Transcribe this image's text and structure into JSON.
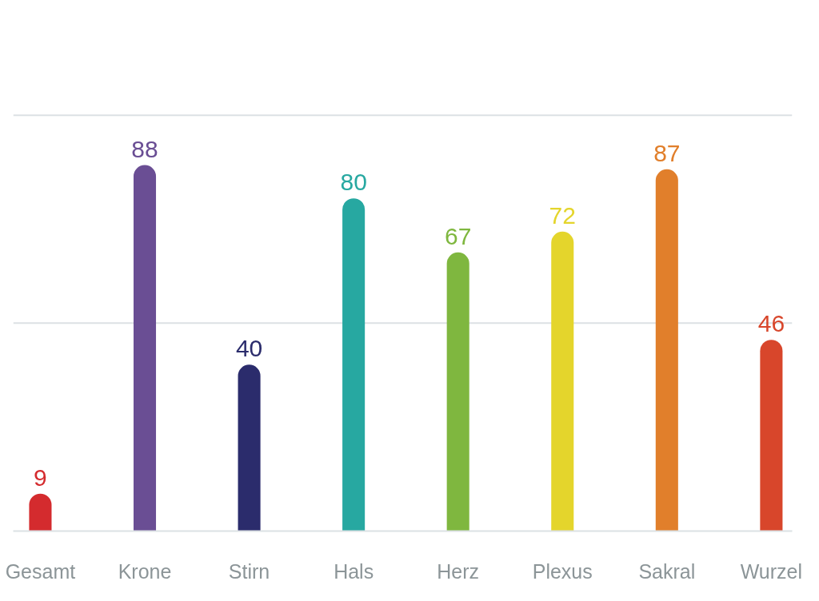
{
  "chart_data": {
    "type": "bar",
    "categories": [
      "Gesamt",
      "Krone",
      "Stirn",
      "Hals",
      "Herz",
      "Plexus",
      "Sakral",
      "Wurzel"
    ],
    "values": [
      9,
      88,
      40,
      80,
      67,
      72,
      87,
      46
    ],
    "colors": [
      "#d42b2e",
      "#6a4e94",
      "#2b2c6c",
      "#27a8a1",
      "#7fb73f",
      "#e4d52c",
      "#e17f2b",
      "#d8462b"
    ],
    "ref_lines": [
      {
        "axis": "y",
        "value": 50,
        "color": "#dce1e4"
      },
      {
        "axis": "y",
        "value": 100,
        "color": "#dce1e4"
      }
    ],
    "tick_labels": "x",
    "data_labels": true
  }
}
